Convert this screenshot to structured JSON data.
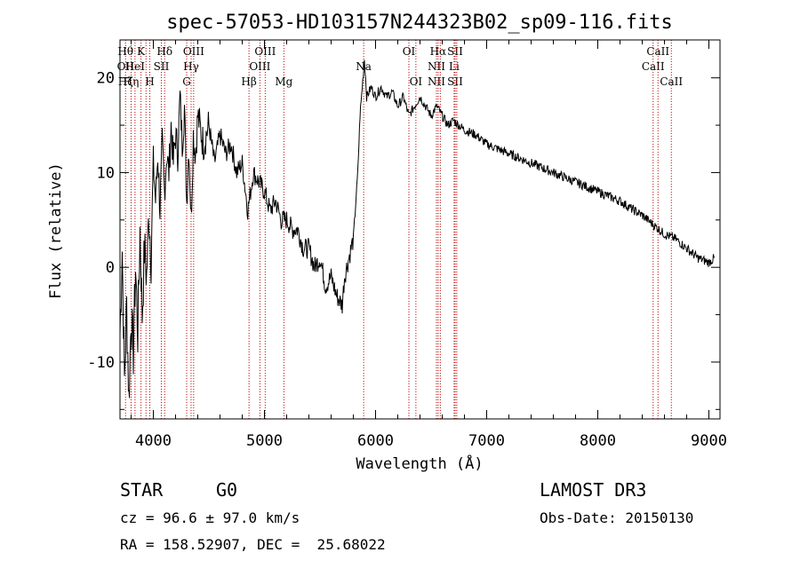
{
  "chart_data": {
    "type": "line",
    "title": "spec-57053-HD103157N244323B02_sp09-116.fits",
    "xlabel": "Wavelength (Å)",
    "ylabel": "Flux (relative)",
    "xlim": [
      3700,
      9100
    ],
    "ylim": [
      -16,
      24
    ],
    "xticks": [
      4000,
      5000,
      6000,
      7000,
      8000,
      9000
    ],
    "xtick_labels": [
      "4000",
      "5000",
      "6000",
      "7000",
      "8000",
      "9000"
    ],
    "yticks": [
      -10,
      0,
      10,
      20
    ],
    "ytick_labels": [
      "-10",
      "0",
      "10",
      "20"
    ],
    "series": [
      {
        "name": "flux",
        "points": [
          [
            3700,
            -7
          ],
          [
            3720,
            2
          ],
          [
            3740,
            -12
          ],
          [
            3760,
            -4
          ],
          [
            3780,
            -14
          ],
          [
            3800,
            -5
          ],
          [
            3820,
            -9
          ],
          [
            3840,
            0
          ],
          [
            3860,
            -7
          ],
          [
            3880,
            4
          ],
          [
            3900,
            -5
          ],
          [
            3920,
            2
          ],
          [
            3940,
            -1
          ],
          [
            3960,
            6
          ],
          [
            3980,
            1
          ],
          [
            4000,
            11
          ],
          [
            4020,
            7
          ],
          [
            4040,
            12
          ],
          [
            4060,
            6
          ],
          [
            4080,
            13
          ],
          [
            4100,
            8
          ],
          [
            4120,
            12
          ],
          [
            4140,
            10
          ],
          [
            4160,
            15
          ],
          [
            4180,
            11
          ],
          [
            4200,
            14
          ],
          [
            4220,
            12
          ],
          [
            4240,
            18
          ],
          [
            4260,
            13
          ],
          [
            4280,
            17
          ],
          [
            4300,
            7
          ],
          [
            4320,
            13
          ],
          [
            4340,
            5
          ],
          [
            4360,
            14
          ],
          [
            4380,
            12
          ],
          [
            4400,
            16
          ],
          [
            4450,
            13
          ],
          [
            4500,
            15
          ],
          [
            4550,
            11
          ],
          [
            4600,
            14
          ],
          [
            4650,
            12
          ],
          [
            4700,
            13
          ],
          [
            4750,
            10
          ],
          [
            4800,
            11
          ],
          [
            4850,
            6
          ],
          [
            4900,
            10
          ],
          [
            4950,
            9
          ],
          [
            5000,
            8
          ],
          [
            5050,
            6
          ],
          [
            5100,
            7
          ],
          [
            5150,
            5
          ],
          [
            5200,
            5
          ],
          [
            5250,
            4
          ],
          [
            5300,
            4
          ],
          [
            5350,
            2
          ],
          [
            5400,
            2
          ],
          [
            5450,
            0
          ],
          [
            5500,
            1
          ],
          [
            5550,
            -2
          ],
          [
            5600,
            -1
          ],
          [
            5650,
            -3
          ],
          [
            5700,
            -4
          ],
          [
            5720,
            -1
          ],
          [
            5760,
            1
          ],
          [
            5800,
            3
          ],
          [
            5840,
            10
          ],
          [
            5860,
            16
          ],
          [
            5880,
            19
          ],
          [
            5900,
            22
          ],
          [
            5920,
            18
          ],
          [
            5960,
            19
          ],
          [
            6000,
            18
          ],
          [
            6050,
            19
          ],
          [
            6100,
            18
          ],
          [
            6150,
            18.5
          ],
          [
            6200,
            17
          ],
          [
            6250,
            18
          ],
          [
            6300,
            16
          ],
          [
            6350,
            17
          ],
          [
            6400,
            18
          ],
          [
            6450,
            17
          ],
          [
            6500,
            16
          ],
          [
            6550,
            17
          ],
          [
            6600,
            16
          ],
          [
            6650,
            15
          ],
          [
            6700,
            15.5
          ],
          [
            6750,
            15
          ],
          [
            6800,
            14.5
          ],
          [
            6900,
            14
          ],
          [
            7000,
            13
          ],
          [
            7100,
            12.5
          ],
          [
            7200,
            12
          ],
          [
            7300,
            11.5
          ],
          [
            7400,
            11
          ],
          [
            7500,
            10.5
          ],
          [
            7600,
            10
          ],
          [
            7700,
            9.5
          ],
          [
            7800,
            9
          ],
          [
            7900,
            8.5
          ],
          [
            8000,
            8
          ],
          [
            8100,
            7.5
          ],
          [
            8200,
            7
          ],
          [
            8300,
            6.2
          ],
          [
            8400,
            5.5
          ],
          [
            8500,
            4.5
          ],
          [
            8600,
            3.5
          ],
          [
            8700,
            3
          ],
          [
            8800,
            2
          ],
          [
            8900,
            1
          ],
          [
            9000,
            0.5
          ],
          [
            9050,
            1
          ]
        ]
      }
    ],
    "line_markers": [
      {
        "wavelength": 3750,
        "labels": [
          "Hθ",
          "OII",
          "Hζ"
        ]
      },
      {
        "wavelength": 3800,
        "labels": [
          "",
          "",
          "Hη"
        ]
      },
      {
        "wavelength": 3835,
        "labels": [
          "",
          "HeI",
          ""
        ]
      },
      {
        "wavelength": 3889,
        "labels": [
          "K",
          "",
          ""
        ]
      },
      {
        "wavelength": 3934,
        "labels": [
          "",
          "",
          ""
        ]
      },
      {
        "wavelength": 3968,
        "labels": [
          "",
          "",
          "H"
        ]
      },
      {
        "wavelength": 4072,
        "labels": [
          "",
          "SII",
          ""
        ]
      },
      {
        "wavelength": 4102,
        "labels": [
          "Hδ",
          "",
          ""
        ]
      },
      {
        "wavelength": 4300,
        "labels": [
          "",
          "",
          "G"
        ]
      },
      {
        "wavelength": 4340,
        "labels": [
          "",
          "Hγ",
          ""
        ]
      },
      {
        "wavelength": 4363,
        "labels": [
          "OIII",
          "",
          ""
        ]
      },
      {
        "wavelength": 4861,
        "labels": [
          "",
          "",
          "Hβ"
        ]
      },
      {
        "wavelength": 4959,
        "labels": [
          "",
          "OIII",
          ""
        ]
      },
      {
        "wavelength": 5007,
        "labels": [
          "OIII",
          "",
          ""
        ]
      },
      {
        "wavelength": 5175,
        "labels": [
          "",
          "",
          "Mg"
        ]
      },
      {
        "wavelength": 5893,
        "labels": [
          "",
          "Na",
          ""
        ]
      },
      {
        "wavelength": 6300,
        "labels": [
          "OI",
          "",
          ""
        ]
      },
      {
        "wavelength": 6363,
        "labels": [
          "",
          "",
          "OI"
        ]
      },
      {
        "wavelength": 6548,
        "labels": [
          "",
          "NII",
          "NII"
        ]
      },
      {
        "wavelength": 6563,
        "labels": [
          "Hα",
          "",
          ""
        ]
      },
      {
        "wavelength": 6583,
        "labels": [
          "",
          "",
          ""
        ]
      },
      {
        "wavelength": 6707,
        "labels": [
          "",
          "Li",
          ""
        ]
      },
      {
        "wavelength": 6716,
        "labels": [
          "SII",
          "",
          "SII"
        ]
      },
      {
        "wavelength": 6731,
        "labels": [
          "",
          "",
          ""
        ]
      },
      {
        "wavelength": 8498,
        "labels": [
          "",
          "CaII",
          ""
        ]
      },
      {
        "wavelength": 8542,
        "labels": [
          "CaII",
          "",
          ""
        ]
      },
      {
        "wavelength": 8662,
        "labels": [
          "",
          "",
          "CaII"
        ]
      }
    ]
  },
  "info": {
    "object_class": "STAR",
    "subclass": "G0",
    "survey": "LAMOST DR3",
    "redshift": "cz = 96.6 ± 97.0 km/s",
    "obs_date": "Obs-Date: 20150130",
    "coords": "RA = 158.52907, DEC =  25.68022"
  },
  "colors": {
    "line": "#000000",
    "marker": "#c00000",
    "background": "#ffffff"
  }
}
